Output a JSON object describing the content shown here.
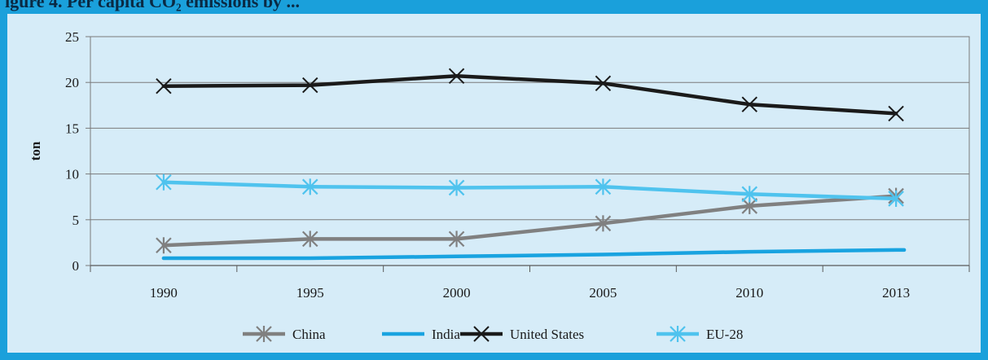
{
  "header": {
    "title": "igure 4. Per capita CO₂ emissions by ..."
  },
  "colors": {
    "frame": "#1aa0db",
    "panel": "#d6ecf8",
    "china": "#808080",
    "india": "#19a3e0",
    "united_states": "#1a1a1a",
    "eu28": "#4fc3ee"
  },
  "chart_data": {
    "type": "line",
    "title": "",
    "xlabel": "",
    "ylabel": "ton",
    "categories": [
      "1990",
      "1995",
      "2000",
      "2005",
      "2010",
      "2013"
    ],
    "ylim": [
      0,
      25
    ],
    "yticks": [
      0,
      5,
      10,
      15,
      20,
      25
    ],
    "grid": true,
    "legend": "bottom",
    "series": [
      {
        "name": "China",
        "marker": "asterisk",
        "color": "#808080",
        "values": [
          2.2,
          2.9,
          2.9,
          4.6,
          6.5,
          7.6
        ]
      },
      {
        "name": "India",
        "marker": "none",
        "color": "#19a3e0",
        "values": [
          0.8,
          0.8,
          1.0,
          1.2,
          1.5,
          1.7
        ]
      },
      {
        "name": "United States",
        "marker": "x",
        "color": "#1a1a1a",
        "values": [
          19.6,
          19.7,
          20.7,
          19.9,
          17.6,
          16.6
        ]
      },
      {
        "name": "EU-28",
        "marker": "asterisk",
        "color": "#4fc3ee",
        "values": [
          9.1,
          8.6,
          8.5,
          8.6,
          7.8,
          7.3
        ]
      }
    ]
  }
}
